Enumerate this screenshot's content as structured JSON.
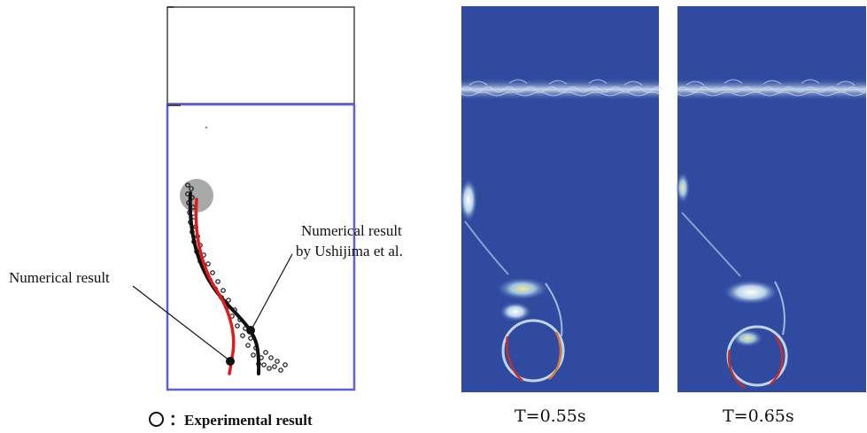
{
  "annotations": {
    "numerical_result": "Numerical result",
    "ushijima_line1": "Numerical result",
    "ushijima_line2": "by Ushijima et al.",
    "legend": "：Experimental result"
  },
  "panels": [
    {
      "caption": "T=0.55s"
    },
    {
      "caption": "T=0.65s"
    }
  ],
  "colors": {
    "tank_outline": "#5f5fd8",
    "numerical_path": "#e01b1b",
    "ushijima_path": "#111111",
    "sphere_initial": "#a8a8a8",
    "field_background": "#2f4a9e"
  }
}
